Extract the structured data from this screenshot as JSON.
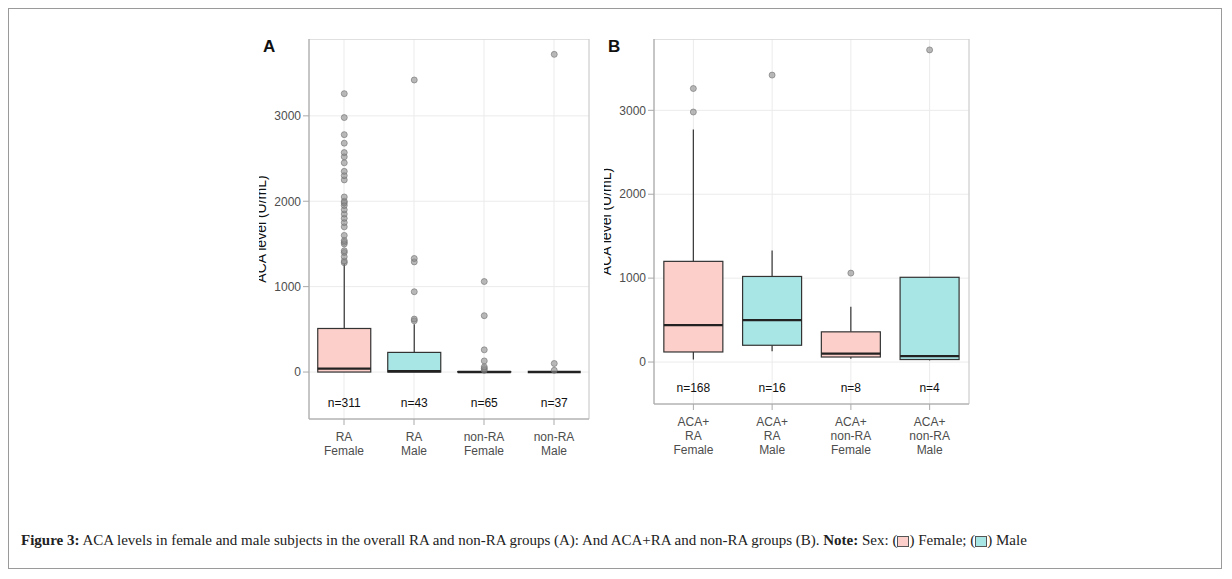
{
  "chart_data": [
    {
      "type": "box",
      "title": "A",
      "ylabel": "ACA level (U/mL)",
      "categories": [
        "RA Female",
        "RA Male",
        "non-RA Female",
        "non-RA Male"
      ],
      "colors": [
        "#fdcfca",
        "#a8e6e6",
        "#fdcfca",
        "#a8e6e6"
      ],
      "whisker_low": [
        0,
        0,
        0,
        0
      ],
      "q1": [
        0,
        0,
        0,
        0
      ],
      "median": [
        40,
        10,
        0,
        0
      ],
      "q3": [
        510,
        230,
        5,
        0
      ],
      "whisker_high": [
        1270,
        560,
        10,
        0
      ],
      "outliers": [
        [
          1280,
          1300,
          1350,
          1400,
          1420,
          1500,
          1520,
          1540,
          1600,
          1700,
          1750,
          1800,
          1850,
          1900,
          1950,
          1980,
          2000,
          2050,
          2250,
          2300,
          2350,
          2450,
          2520,
          2570,
          2680,
          2780,
          2980,
          3260
        ],
        [
          600,
          620,
          940,
          1290,
          1330,
          3420
        ],
        [
          20,
          40,
          60,
          130,
          260,
          660,
          1060
        ],
        [
          20,
          100,
          3720
        ]
      ],
      "n_labels": [
        "n=311",
        "n=43",
        "n=65",
        "n=37"
      ],
      "ylim": [
        -550,
        3900
      ],
      "yticks": [
        0,
        1000,
        2000,
        3000
      ],
      "grid": true
    },
    {
      "type": "box",
      "title": "B",
      "ylabel": "ACA level (U/mL)",
      "categories": [
        "ACA+ RA Female",
        "ACA+ RA Male",
        "ACA+ non-RA Female",
        "ACA+ non-RA Male"
      ],
      "colors": [
        "#fdcfca",
        "#a8e6e6",
        "#fdcfca",
        "#a8e6e6"
      ],
      "whisker_low": [
        30,
        130,
        40,
        20
      ],
      "q1": [
        120,
        200,
        60,
        30
      ],
      "median": [
        440,
        500,
        100,
        70
      ],
      "q3": [
        1200,
        1020,
        360,
        1010
      ],
      "whisker_high": [
        2770,
        1330,
        660,
        1010
      ],
      "outliers": [
        [
          2980,
          3260
        ],
        [
          3420
        ],
        [
          1060
        ],
        [
          3720
        ]
      ],
      "n_labels": [
        "n=168",
        "n=16",
        "n=8",
        "n=4"
      ],
      "ylim": [
        -500,
        3850
      ],
      "yticks": [
        0,
        1000,
        2000,
        3000
      ],
      "grid": true
    }
  ],
  "caption": {
    "label": "Figure 3:",
    "text": "ACA levels in female and male subjects in the overall RA and non-RA groups (A): And ACA+RA and non-RA groups (B).",
    "note_label": "Note:",
    "note_text": "Sex:",
    "items": [
      {
        "before": "(",
        "after": ") Female;",
        "color": "#fdcfca"
      },
      {
        "before": "(",
        "after": ") Male",
        "color": "#a8e6e6"
      }
    ]
  }
}
